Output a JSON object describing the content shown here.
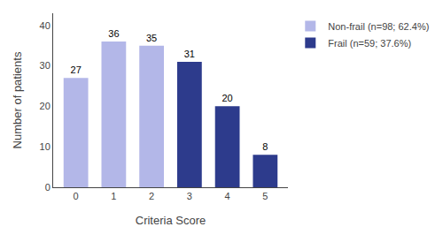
{
  "chart_data": {
    "type": "bar",
    "categories": [
      "0",
      "1",
      "2",
      "3",
      "4",
      "5"
    ],
    "series": [
      {
        "name": "Non-frail (n=98; 62.4%)",
        "color": "#b3b7e8",
        "values": [
          27,
          36,
          35,
          null,
          null,
          null
        ]
      },
      {
        "name": "Frail (n=59; 37.6%)",
        "color": "#2d3b8c",
        "values": [
          null,
          null,
          null,
          31,
          20,
          8
        ]
      }
    ],
    "xlabel": "Criteria Score",
    "ylabel": "Number of patients",
    "ylim": [
      0,
      43
    ],
    "yticks": [
      0,
      10,
      20,
      30,
      40
    ],
    "data_labels": true,
    "grid": false,
    "legend": "upper right"
  }
}
